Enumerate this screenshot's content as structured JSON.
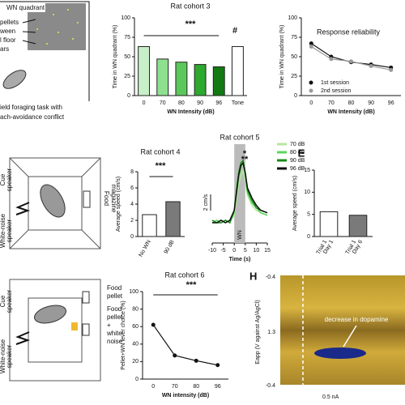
{
  "chart_data": [
    {
      "type": "bar",
      "title": "Rat cohort 3",
      "categories": [
        "0",
        "70",
        "80",
        "90",
        "96",
        "Tone"
      ],
      "values": [
        63,
        47,
        43,
        40,
        37,
        63
      ],
      "colors": [
        "#c8f0c8",
        "#8ee08e",
        "#5cc85c",
        "#2ea82e",
        "#137a13",
        "#ffffff"
      ],
      "ylim": [
        0,
        100
      ],
      "yticks": [
        0,
        25,
        50,
        75,
        100
      ],
      "x_label": "WN Intensity (dB)",
      "y_label": "Time in WN quadrant (%)",
      "annotations": [
        "***",
        "#"
      ]
    },
    {
      "type": "line",
      "title": "Response reliability",
      "categories": [
        "0",
        "70",
        "80",
        "90",
        "96"
      ],
      "series": [
        {
          "name": "1st session",
          "color": "#111111",
          "values": [
            67,
            50,
            43,
            40,
            36
          ]
        },
        {
          "name": "2nd session",
          "color": "#999999",
          "values": [
            63,
            47,
            44,
            38,
            33
          ]
        }
      ],
      "ylim": [
        0,
        100
      ],
      "yticks": [
        0,
        25,
        50,
        75,
        100
      ],
      "x_label": "WN Intensity (dB)",
      "y_label": "Time in WN quadrant (%)"
    },
    {
      "type": "bar",
      "title": "Rat cohort 4",
      "categories": [
        "No WN",
        "90 dB"
      ],
      "values": [
        2.7,
        4.3
      ],
      "colors": [
        "#ffffff",
        "#7a7a7a"
      ],
      "ylim": [
        0,
        8
      ],
      "yticks": [
        0,
        2,
        4,
        6,
        8
      ],
      "y_label": "Average speed (cm/s)",
      "annotations": [
        "***"
      ]
    },
    {
      "type": "line",
      "title": "Rat cohort 5",
      "x": [
        -10,
        -8,
        -6,
        -4,
        -2,
        0,
        1,
        2,
        3,
        4,
        5,
        6,
        8,
        10,
        12,
        15
      ],
      "series": [
        {
          "name": "70 dB",
          "color": "#b8e6a0",
          "values": [
            0.1,
            0,
            0.1,
            0,
            0.1,
            0.3,
            0.9,
            1.5,
            1.9,
            2.1,
            1.7,
            1.1,
            0.7,
            0.5,
            0.4,
            0.3
          ]
        },
        {
          "name": "80 dB",
          "color": "#5cd65c",
          "values": [
            0,
            0.1,
            0,
            0.1,
            0,
            0.4,
            1.1,
            1.8,
            2.2,
            2.4,
            1.9,
            1.2,
            0.8,
            0.6,
            0.4,
            0.3
          ]
        },
        {
          "name": "90 dB",
          "color": "#1a8a1a",
          "values": [
            0.1,
            0,
            0,
            0.1,
            0,
            0.5,
            1.3,
            2.0,
            2.4,
            2.5,
            2.0,
            1.3,
            0.9,
            0.6,
            0.5,
            0.4
          ]
        },
        {
          "name": "96 dB",
          "color": "#111111",
          "values": [
            0,
            0,
            0.1,
            0,
            0.1,
            0.5,
            1.2,
            1.9,
            2.3,
            2.4,
            2.0,
            1.4,
            1.0,
            0.7,
            0.5,
            0.4
          ]
        }
      ],
      "xlim": [
        -10,
        15
      ],
      "xticks": [
        -10,
        -5,
        0,
        5,
        10,
        15
      ],
      "x_label": "Time (s)",
      "shaded_interval": [
        0,
        5
      ],
      "shade_label": "WN",
      "scale_label": "2 cm/s",
      "annotations": [
        "*",
        "**"
      ]
    },
    {
      "type": "bar",
      "title": "E",
      "categories": [
        [
          "Trial 1",
          "Day 1"
        ],
        [
          "Trial 1",
          "Day 6"
        ]
      ],
      "values": [
        5.6,
        4.8
      ],
      "colors": [
        "#ffffff",
        "#7a7a7a"
      ],
      "ylim": [
        0,
        15
      ],
      "yticks": [
        0,
        5,
        10,
        15
      ],
      "y_label": "Average speed (cm/s)"
    },
    {
      "type": "line",
      "title": "Rat cohort 6",
      "categories": [
        "0",
        "70",
        "80",
        "96"
      ],
      "series": [
        {
          "color": "#111111",
          "values": [
            62,
            27,
            21,
            16
          ]
        }
      ],
      "ylim": [
        0,
        100
      ],
      "yticks": [
        0,
        20,
        40,
        60,
        80,
        100
      ],
      "x_label": "WN intensity (dB)",
      "y_label": "Pellet+WN lever choice (%)",
      "annotations": [
        "***"
      ]
    }
  ],
  "panels": {
    "foraging": {
      "quadrant": "WN quadrant",
      "side": [
        "pellets",
        "ween",
        "l floor",
        "ars"
      ],
      "caption": [
        "ield foraging task with",
        "ach-avoidance conflict"
      ]
    },
    "cohort4_setup": {
      "cue": [
        "Cue",
        "speaker"
      ],
      "noise": [
        "White-noise",
        "speaker"
      ],
      "magazine": [
        "Food",
        "magazine"
      ]
    },
    "cohort6_setup": {
      "cue": [
        "Cue",
        "speaker"
      ],
      "noise": [
        "White-noise",
        "speaker"
      ],
      "pellet": [
        "Food",
        "pellet"
      ],
      "pellet_noise": [
        "Food",
        "pellet",
        "+",
        "white",
        "noise"
      ]
    },
    "H": {
      "letter": "H",
      "yticks": [
        "-0.4",
        "1.3",
        "-0.4"
      ],
      "y_label": "Eapp (V against Ag/AgCl)",
      "note": "decrease in dopamine",
      "scale": "0.5 nA"
    }
  }
}
